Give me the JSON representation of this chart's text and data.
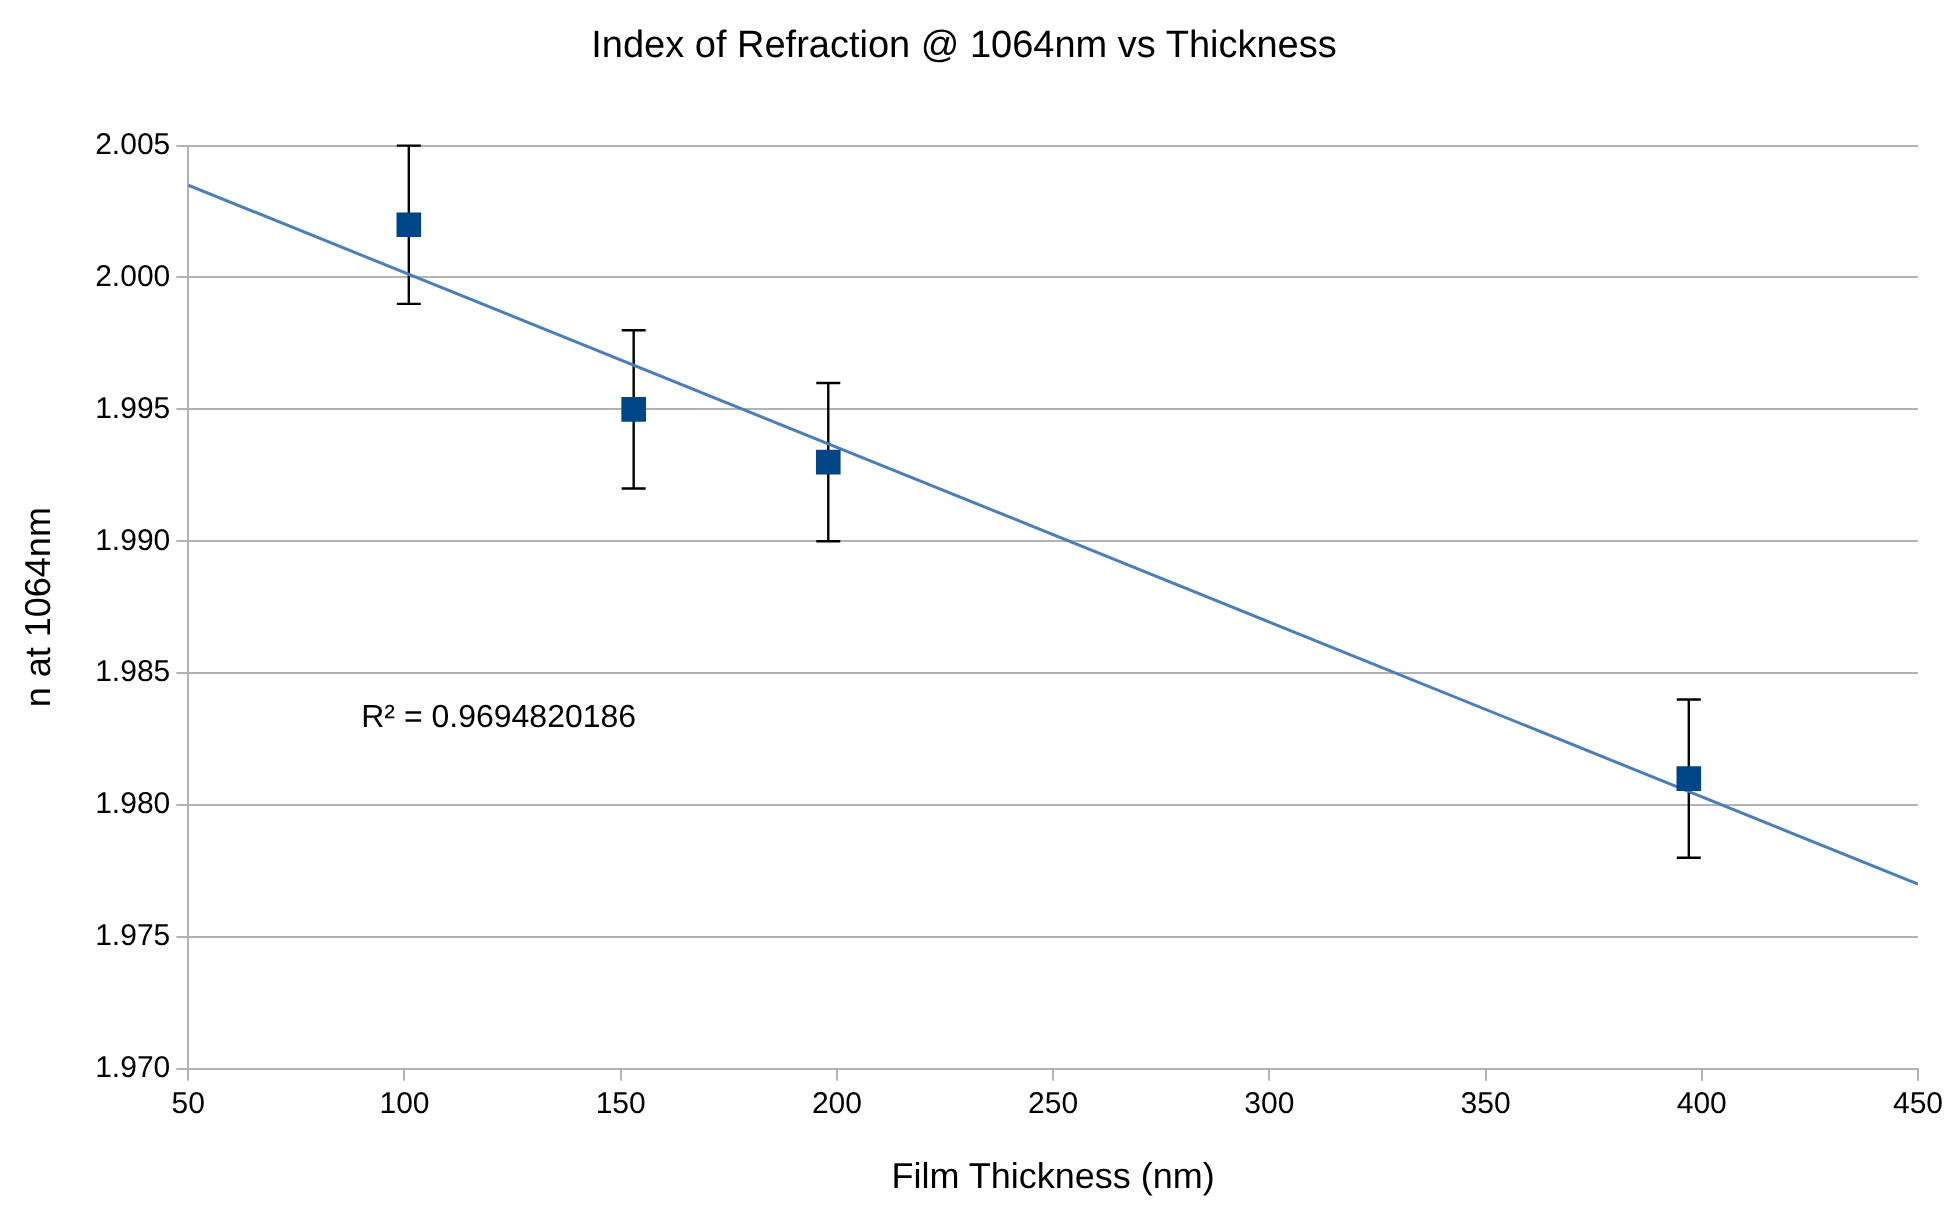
{
  "chart_data": {
    "type": "scatter",
    "title": "Index of Refraction @ 1064nm vs Thickness",
    "xlabel": "Film Thickness (nm)",
    "ylabel": "n at 1064nm",
    "xlim": [
      50,
      450
    ],
    "xticks": [
      50,
      100,
      150,
      200,
      250,
      300,
      350,
      400,
      450
    ],
    "ylim": [
      1.97,
      2.005
    ],
    "yticks": [
      {
        "value": 1.97,
        "label": "1.970"
      },
      {
        "value": 1.975,
        "label": "1.975"
      },
      {
        "value": 1.98,
        "label": "1.980"
      },
      {
        "value": 1.985,
        "label": "1.985"
      },
      {
        "value": 1.99,
        "label": "1.990"
      },
      {
        "value": 1.995,
        "label": "1.995"
      },
      {
        "value": 2.0,
        "label": "2.000"
      },
      {
        "value": 2.005,
        "label": "2.005"
      }
    ],
    "grid": "y",
    "legend": false,
    "series": [
      {
        "type": "scatter",
        "marker": "square",
        "color": "#004586",
        "x": [
          101,
          153,
          198,
          397
        ],
        "values": [
          2.002,
          1.995,
          1.993,
          1.981
        ],
        "errors": [
          0.003,
          0.003,
          0.003,
          0.003
        ]
      },
      {
        "type": "line",
        "marker": "none",
        "color": "#4a7ebb",
        "x": [
          50,
          450
        ],
        "values": [
          2.0035,
          1.977
        ]
      }
    ],
    "annotations": [
      "R² = 0.9694820186"
    ]
  }
}
